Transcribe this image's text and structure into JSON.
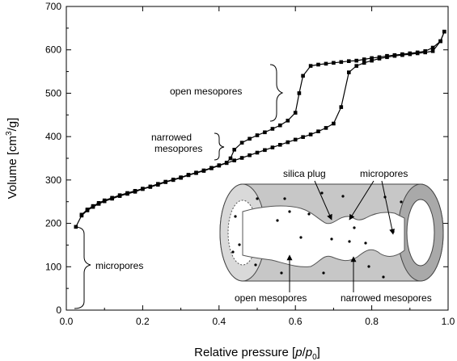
{
  "chart_data": {
    "type": "line",
    "xlabel": "Relative pressure [p/p0]",
    "xlabel_parts": {
      "prefix": "Relative pressure [",
      "p": "p",
      "slash": "/",
      "p0_base": "p",
      "p0_sub": "0",
      "suffix": "]"
    },
    "ylabel": "Volume [cm3/g]",
    "ylabel_parts": {
      "prefix": "Volume [cm",
      "sup": "3",
      "suffix": "/g]"
    },
    "xlim": [
      0.0,
      1.0
    ],
    "ylim": [
      0,
      700
    ],
    "x_ticks": [
      0.0,
      0.2,
      0.4,
      0.6,
      0.8,
      1.0
    ],
    "x_tick_labels": [
      "0.0",
      "0.2",
      "0.4",
      "0.6",
      "0.8",
      "1.0"
    ],
    "y_ticks": [
      0,
      100,
      200,
      300,
      400,
      500,
      600,
      700
    ],
    "y_tick_labels": [
      "0",
      "100",
      "200",
      "300",
      "400",
      "500",
      "600",
      "700"
    ],
    "grid": false,
    "series": [
      {
        "role": "adsorption",
        "x": [
          0.025,
          0.04,
          0.055,
          0.07,
          0.085,
          0.1,
          0.12,
          0.14,
          0.16,
          0.18,
          0.2,
          0.22,
          0.24,
          0.26,
          0.28,
          0.3,
          0.32,
          0.34,
          0.36,
          0.38,
          0.4,
          0.42,
          0.44,
          0.46,
          0.48,
          0.5,
          0.52,
          0.54,
          0.56,
          0.58,
          0.6,
          0.62,
          0.64,
          0.66,
          0.68,
          0.7,
          0.72,
          0.74,
          0.76,
          0.78,
          0.8,
          0.82,
          0.84,
          0.86,
          0.88,
          0.9,
          0.92,
          0.94,
          0.96,
          0.98,
          0.99
        ],
        "y": [
          192,
          218,
          230,
          238,
          245,
          251,
          257,
          263,
          268,
          273,
          279,
          284,
          289,
          295,
          300,
          305,
          311,
          316,
          321,
          327,
          333,
          339,
          345,
          351,
          357,
          363,
          369,
          375,
          381,
          387,
          393,
          399,
          405,
          412,
          420,
          430,
          468,
          548,
          563,
          570,
          575,
          580,
          583,
          586,
          588,
          590,
          592,
          594,
          597,
          620,
          642
        ]
      },
      {
        "role": "desorption",
        "x": [
          0.99,
          0.98,
          0.96,
          0.94,
          0.92,
          0.9,
          0.88,
          0.86,
          0.84,
          0.82,
          0.8,
          0.78,
          0.76,
          0.74,
          0.72,
          0.7,
          0.68,
          0.66,
          0.64,
          0.62,
          0.61,
          0.6,
          0.58,
          0.56,
          0.54,
          0.52,
          0.5,
          0.48,
          0.46,
          0.44,
          0.43,
          0.42,
          0.4,
          0.38,
          0.36,
          0.34,
          0.32,
          0.3,
          0.28,
          0.26,
          0.24,
          0.22,
          0.2,
          0.18,
          0.16,
          0.14,
          0.12,
          0.1,
          0.085,
          0.07,
          0.055,
          0.04
        ],
        "y": [
          642,
          620,
          605,
          597,
          594,
          592,
          590,
          588,
          586,
          583,
          581,
          578,
          575,
          574,
          572,
          570,
          568,
          566,
          563,
          540,
          500,
          455,
          437,
          426,
          418,
          410,
          403,
          395,
          386,
          370,
          350,
          340,
          334,
          328,
          322,
          317,
          312,
          306,
          301,
          296,
          291,
          285,
          280,
          275,
          270,
          265,
          259,
          253,
          247,
          240,
          232,
          220
        ]
      }
    ],
    "annotations": [
      {
        "id": "open",
        "text": "open mesopores"
      },
      {
        "id": "narrowed",
        "lines": [
          "narrowed",
          "mesopores"
        ]
      },
      {
        "id": "micro",
        "text": "micropores"
      }
    ],
    "inset": {
      "labels": {
        "silica_plug": "silica plug",
        "micropores": "micropores",
        "open_mesopores": "open mesopores",
        "narrowed_mesopores": "narrowed mesopores"
      }
    }
  }
}
